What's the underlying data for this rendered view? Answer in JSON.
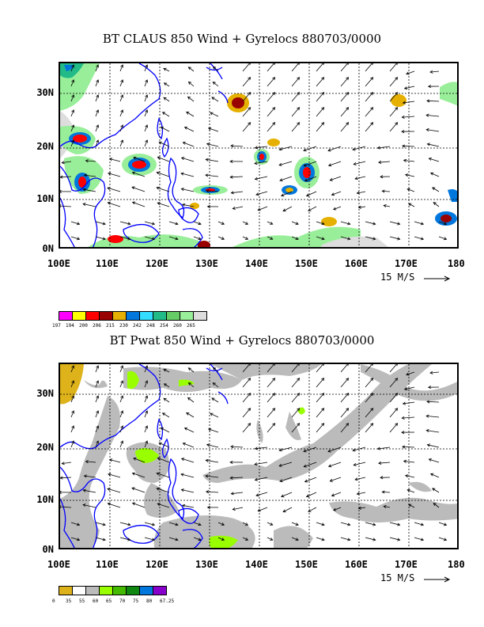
{
  "panels": [
    {
      "id": "claus",
      "title": "BT CLAUS 850 Wind + Gyrelocs 880703/0000",
      "lat_labels": [
        "30N",
        "20N",
        "10N",
        "0N"
      ],
      "lon_labels": [
        "100E",
        "110E",
        "120E",
        "130E",
        "140E",
        "150E",
        "160E",
        "170E",
        "180"
      ],
      "vector_scale_label": "15 M/S",
      "legend": {
        "colors": [
          "#ff00ff",
          "#ffff00",
          "#ff0000",
          "#990000",
          "#e6b000",
          "#0077dd",
          "#33ddff",
          "#22bb88",
          "#66cc66",
          "#99ee99",
          "#dddddd"
        ],
        "values": [
          "197",
          "194",
          "200",
          "206",
          "215",
          "230",
          "242",
          "248",
          "254",
          "260",
          "265"
        ]
      }
    },
    {
      "id": "pwat",
      "title": "BT Pwat 850 Wind + Gyrelocs 880703/0000",
      "lat_labels": [
        "30N",
        "20N",
        "10N",
        "0N"
      ],
      "lon_labels": [
        "100E",
        "110E",
        "120E",
        "130E",
        "140E",
        "150E",
        "160E",
        "170E",
        "180"
      ],
      "vector_scale_label": "15 M/S",
      "legend": {
        "colors": [
          "#ddb21b",
          "#ffffff",
          "#bbbbbb",
          "#99ff00",
          "#44bb00",
          "#118811",
          "#0077dd",
          "#8800cc"
        ],
        "values": [
          "0",
          "35",
          "55",
          "60",
          "65",
          "70",
          "75",
          "80",
          "67.25"
        ]
      }
    }
  ]
}
